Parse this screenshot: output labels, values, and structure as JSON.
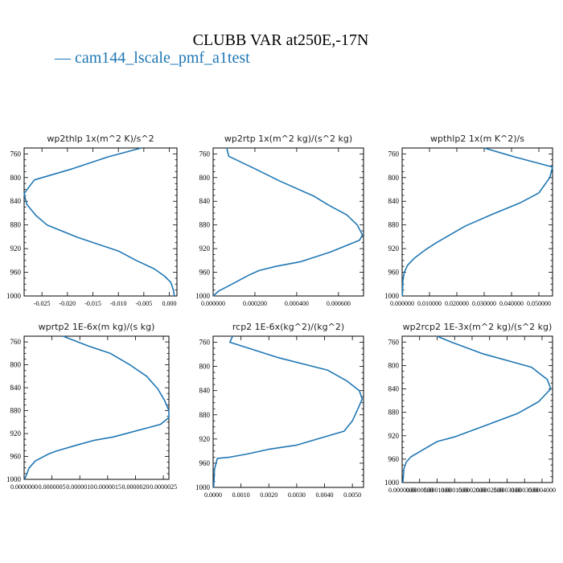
{
  "figure": {
    "title": "CLUBB VAR at250E,-17N",
    "legend": "— cam144_lscale_pmf_a1test",
    "series_color": "#1f77b4"
  },
  "chart_data": [
    {
      "type": "line",
      "title": "wp2thlp  1x(m^2 K)/s^2",
      "series_name": "cam144_lscale_pmf_a1test",
      "ylim": [
        1000,
        750
      ],
      "xlim": [
        -0.0285,
        0.0015
      ],
      "yticks": [
        "760",
        "800",
        "840",
        "880",
        "920",
        "960",
        "1000"
      ],
      "xticks": [
        "-0.025",
        "-0.020",
        "-0.015",
        "-0.010",
        "-0.005",
        "0.000"
      ],
      "x": [
        -0.0055,
        -0.012,
        -0.019,
        -0.0265,
        -0.0285,
        -0.028,
        -0.0262,
        -0.024,
        -0.018,
        -0.01,
        -0.0065,
        -0.003,
        -0.001,
        0.0003,
        0.0008,
        0.001
      ],
      "y": [
        750,
        765,
        785,
        804,
        827,
        845,
        864,
        880,
        901,
        924,
        940,
        954,
        966,
        977,
        990,
        1000
      ]
    },
    {
      "type": "line",
      "title": "wp2rtp  1x(m^2 kg)/(s^2 kg)",
      "series_name": "cam144_lscale_pmf_a1test",
      "ylim": [
        1000,
        750
      ],
      "xlim": [
        0.0,
        0.00072
      ],
      "yticks": [
        "760",
        "800",
        "840",
        "880",
        "920",
        "960",
        "1000"
      ],
      "xticks": [
        "0.000000",
        "0.000200",
        "0.000400",
        "0.000600"
      ],
      "x": [
        6.5e-05,
        7.5e-05,
        0.0002,
        0.00032,
        0.00048,
        0.00056,
        0.00064,
        0.00069,
        0.000715,
        0.0007,
        0.00056,
        0.00042,
        0.0003,
        0.00022,
        0.00017,
        9e-05,
        2.5e-05,
        0.0
      ],
      "y": [
        750,
        764,
        785,
        806,
        831,
        848,
        863,
        880,
        897,
        906,
        926,
        942,
        950,
        957,
        965,
        980,
        992,
        1000
      ]
    },
    {
      "type": "line",
      "title": "wpthlp2  1x(m K^2)/s",
      "series_name": "cam144_lscale_pmf_a1test",
      "ylim": [
        1000,
        750
      ],
      "xlim": [
        0.0,
        0.055
      ],
      "yticks": [
        "760",
        "800",
        "840",
        "880",
        "920",
        "960",
        "1000"
      ],
      "xticks": [
        "0.000000",
        "0.010000",
        "0.020000",
        "0.030000",
        "0.040000",
        "0.050000"
      ],
      "x": [
        0.03,
        0.041,
        0.055,
        0.054,
        0.05,
        0.043,
        0.033,
        0.023,
        0.0125,
        0.0085,
        0.0045,
        0.002,
        0.0008,
        0.0003,
        0.0001
      ],
      "y": [
        750,
        765,
        782,
        800,
        826,
        843,
        862,
        882,
        910,
        922,
        936,
        948,
        960,
        972,
        1000
      ]
    },
    {
      "type": "line",
      "title": "wprtp2  1E-6x(m kg)/(s kg)",
      "series_name": "cam144_lscale_pmf_a1test",
      "ylim": [
        1000,
        750
      ],
      "xlim": [
        0.0,
        2.6e-06
      ],
      "yticks": [
        "760",
        "800",
        "840",
        "880",
        "920",
        "960",
        "1000"
      ],
      "xticks": [
        "0.0000000",
        "0.0000005",
        "0.0000010",
        "0.0000015",
        "0.0000020",
        "0.0000025"
      ],
      "x": [
        7e-07,
        1.15e-06,
        1.55e-06,
        1.9e-06,
        2.2e-06,
        2.4e-06,
        2.52e-06,
        2.6e-06,
        2.6e-06,
        2.45e-06,
        1.6e-06,
        1.25e-06,
        9.5e-07,
        6e-07,
        4.5e-07,
        2e-07,
        9e-08,
        1e-08
      ],
      "y": [
        750,
        767,
        780,
        800,
        820,
        842,
        862,
        880,
        892,
        904,
        926,
        932,
        940,
        950,
        955,
        968,
        980,
        1000
      ]
    },
    {
      "type": "line",
      "title": "rcp2  1E-6x(kg^2)/(kg^2)",
      "series_name": "cam144_lscale_pmf_a1test",
      "ylim": [
        1000,
        750
      ],
      "xlim": [
        0.0,
        0.0054
      ],
      "yticks": [
        "760",
        "800",
        "840",
        "880",
        "920",
        "960",
        "1000"
      ],
      "xticks": [
        "0.0000",
        "0.0010",
        "0.0020",
        "0.0030",
        "0.0040",
        "0.0050"
      ],
      "x": [
        0.0007,
        0.0006,
        0.0023,
        0.0041,
        0.0048,
        0.00525,
        0.00535,
        0.0052,
        0.005,
        0.0047,
        0.003,
        0.002,
        0.0012,
        0.0006,
        0.00015,
        5e-05,
        2e-05
      ],
      "y": [
        750,
        760,
        785,
        806,
        824,
        840,
        854,
        870,
        890,
        907,
        930,
        937,
        945,
        950,
        952,
        970,
        1000
      ]
    },
    {
      "type": "line",
      "title": "wp2rcp2  1E-3x(m^2 kg)/(s^2 kg)",
      "series_name": "cam144_lscale_pmf_a1test",
      "ylim": [
        1000,
        750
      ],
      "xlim": [
        0.0,
        0.00043
      ],
      "yticks": [
        "760",
        "800",
        "840",
        "880",
        "920",
        "960",
        "1000"
      ],
      "xticks": [
        "0.0000000",
        "0.0000500",
        "0.0001000",
        "0.0001500",
        "0.0002000",
        "0.0002500",
        "0.0003000",
        "0.0003500",
        "0.0004000"
      ],
      "x": [
        0.0001,
        0.00014,
        0.00023,
        0.00037,
        0.000415,
        0.000425,
        0.00039,
        0.00033,
        0.00024,
        0.00015,
        0.0001,
        6.5e-05,
        2.5e-05,
        1.2e-05,
        5e-06,
        2e-06
      ],
      "y": [
        750,
        760,
        780,
        803,
        824,
        840,
        862,
        882,
        902,
        922,
        930,
        942,
        956,
        965,
        976,
        1000
      ]
    }
  ]
}
